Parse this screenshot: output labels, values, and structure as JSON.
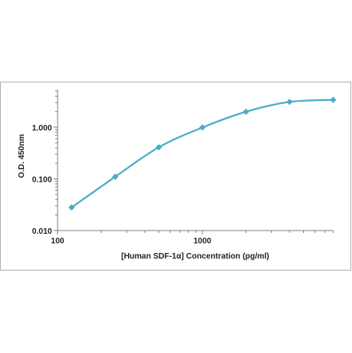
{
  "chart_data": {
    "type": "line",
    "title": "",
    "xlabel": "[Human SDF-1α] Concentration (pg/ml)",
    "ylabel": "O.D. 450nm",
    "x_scale": "log",
    "y_scale": "log",
    "xlim": [
      100,
      10000
    ],
    "ylim": [
      0.01,
      10
    ],
    "x_ticks": [
      "100",
      "1000"
    ],
    "y_ticks": [
      "0.010",
      "0.100",
      "1.000"
    ],
    "grid": false,
    "legend": "none",
    "series": [
      {
        "x": [
          125,
          250,
          500,
          1000,
          2000,
          4000,
          8000
        ],
        "y": [
          0.028,
          0.11,
          0.41,
          0.99,
          2.0,
          3.1,
          3.4
        ]
      }
    ],
    "colors": {
      "series": "#4bacc6",
      "axis": "#808080"
    }
  }
}
